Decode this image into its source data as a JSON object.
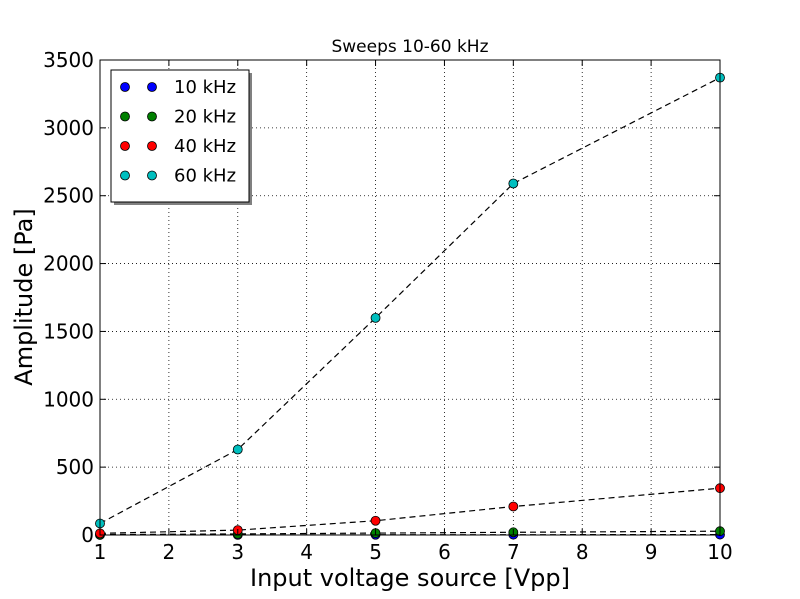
{
  "chart_data": {
    "type": "scatter",
    "title": "Sweeps 10-60 kHz",
    "xlabel": "Input voltage source [Vpp]",
    "ylabel": "Amplitude [Pa]",
    "xlim": [
      1,
      10
    ],
    "ylim": [
      0,
      3500
    ],
    "xticks": [
      1,
      2,
      3,
      4,
      5,
      6,
      7,
      8,
      9,
      10
    ],
    "yticks": [
      0,
      500,
      1000,
      1500,
      2000,
      2500,
      3000,
      3500
    ],
    "grid": true,
    "legend_position": "top-left",
    "fit_line_style": "dashed black",
    "series": [
      {
        "name": "10 kHz",
        "color": "#0000ff",
        "x": [
          1,
          3,
          5,
          7,
          10
        ],
        "y": [
          0.3,
          0.9,
          1.6,
          2.3,
          3.2
        ]
      },
      {
        "name": "20 kHz",
        "color": "#008000",
        "x": [
          1,
          3,
          5,
          7,
          10
        ],
        "y": [
          3,
          8,
          14,
          20,
          28
        ]
      },
      {
        "name": "40 kHz",
        "color": "#ff0000",
        "x": [
          1,
          3,
          5,
          7,
          10
        ],
        "y": [
          12,
          36,
          105,
          210,
          345
        ]
      },
      {
        "name": "60 kHz",
        "color": "#00bfbf",
        "x": [
          1,
          3,
          5,
          7,
          10
        ],
        "y": [
          85,
          630,
          1600,
          2590,
          3370
        ]
      }
    ]
  }
}
